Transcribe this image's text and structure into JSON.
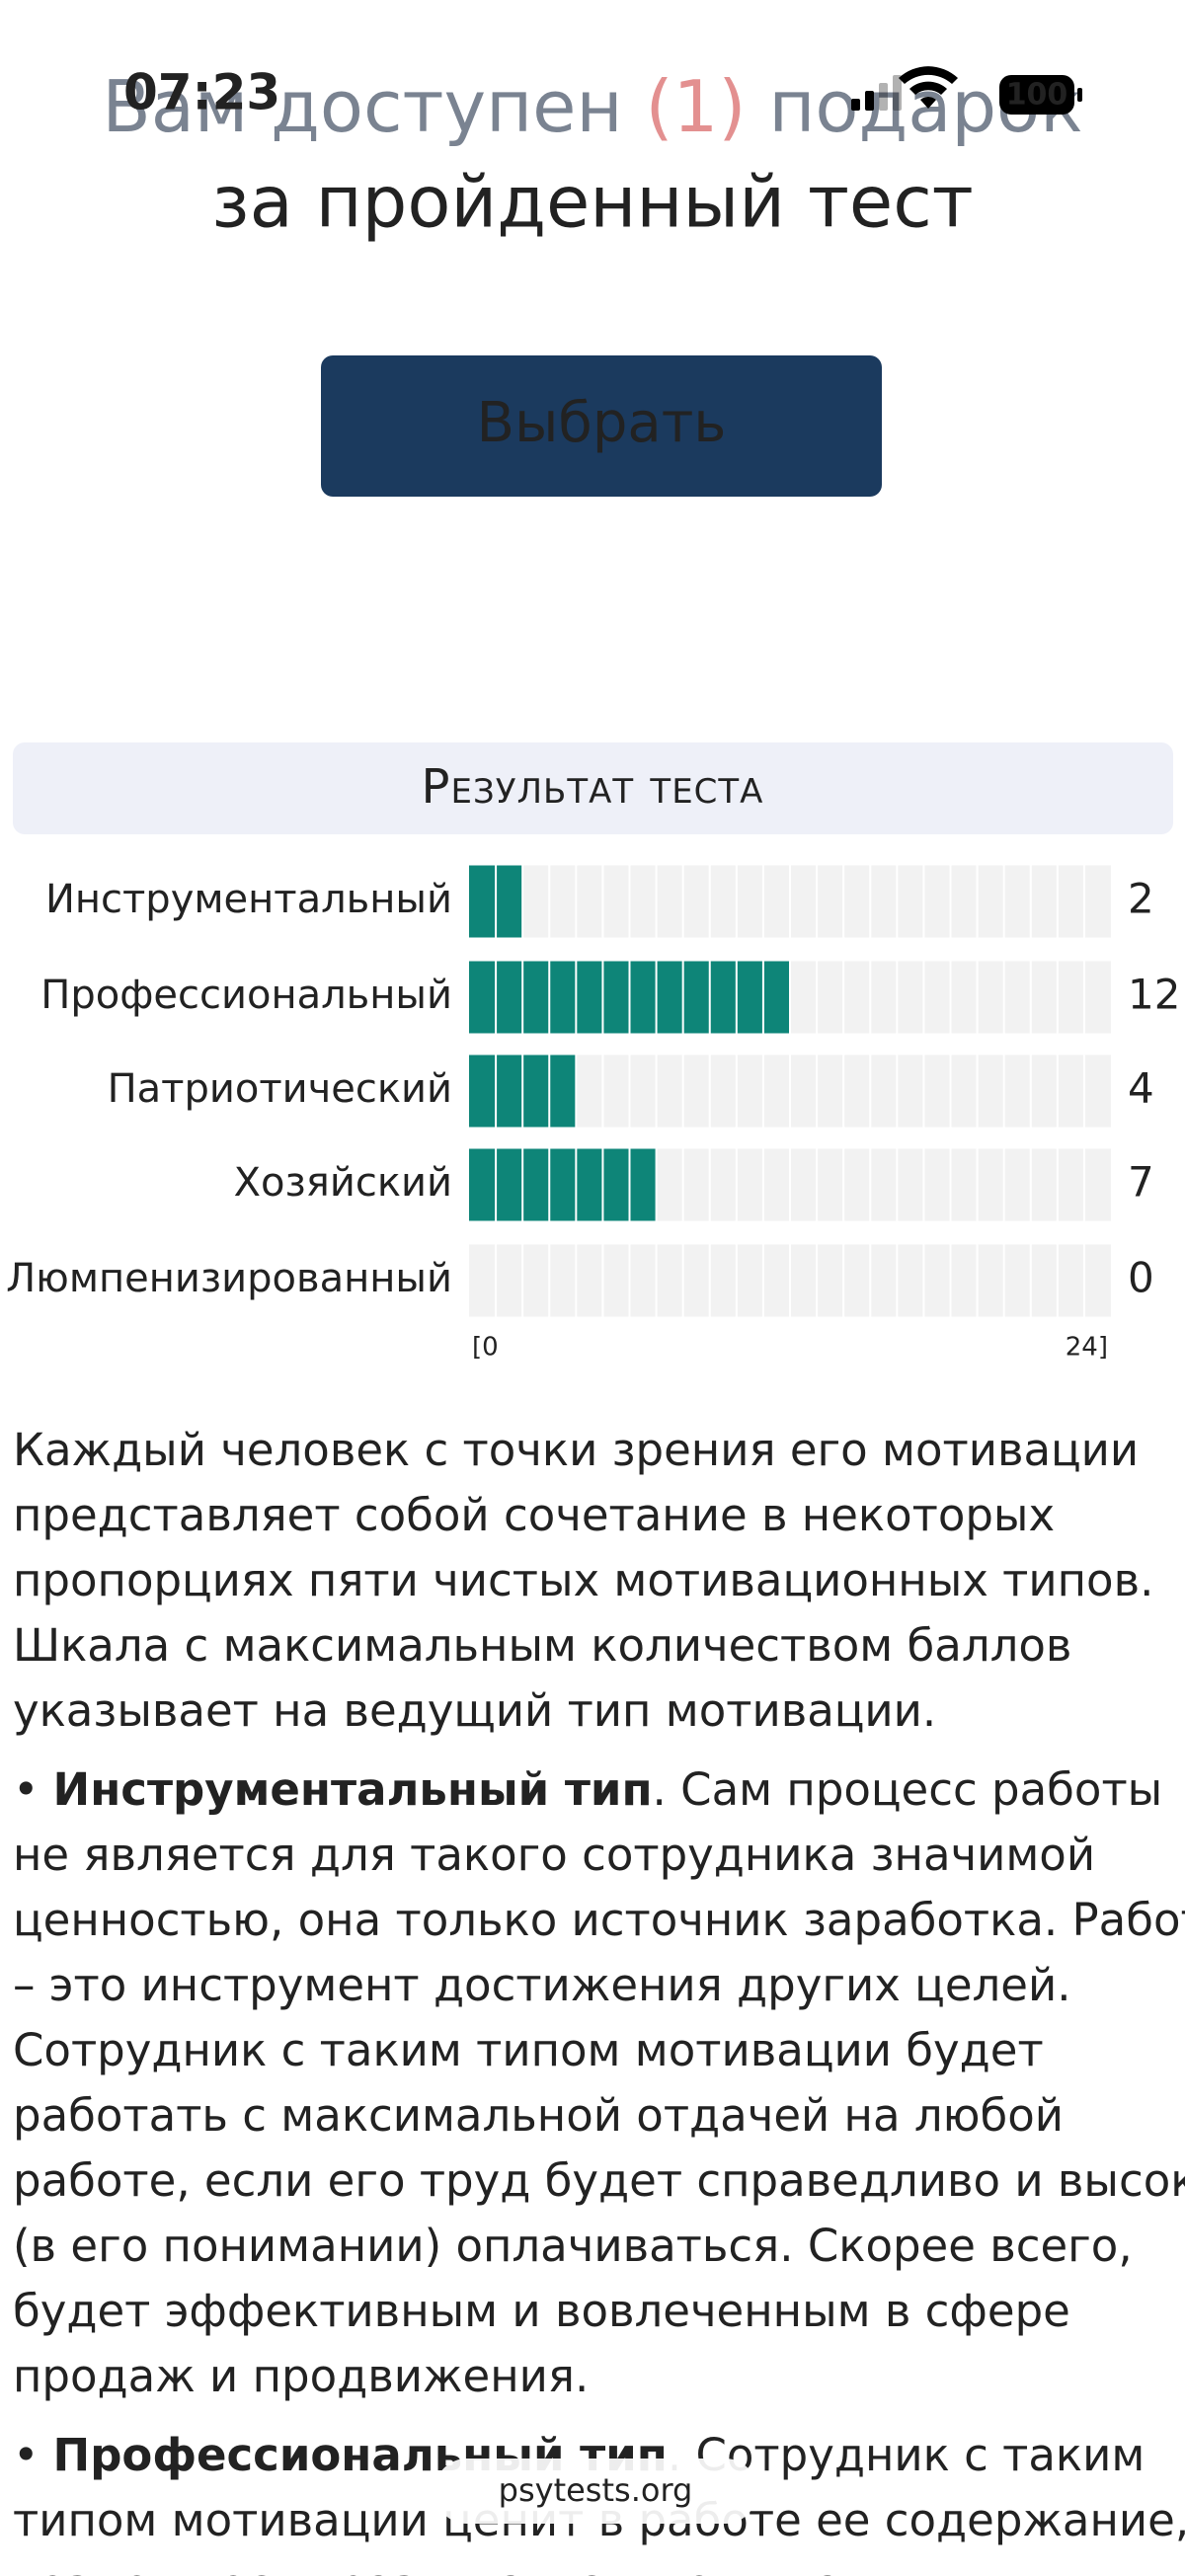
{
  "status_bar": {
    "time": "07:23",
    "battery": "100"
  },
  "header": {
    "line1": [
      "Вам доступен ",
      "(1)",
      " подарок"
    ],
    "line2": "за пройденный тест",
    "button": "Выбрать"
  },
  "chart_data": {
    "type": "bar",
    "orientation": "horizontal",
    "title": "Результат теста",
    "categories": [
      "Инструментальный",
      "Профессиональный",
      "Патриотический",
      "Хозяйский",
      "Люмпенизированный"
    ],
    "values": [
      2,
      12,
      4,
      7,
      0
    ],
    "color": "#0e8578",
    "xlim": [
      0,
      24
    ],
    "xticks": [
      {
        "value": 0,
        "label": "[0"
      },
      {
        "value": 24,
        "label": "24]"
      }
    ]
  },
  "description": {
    "intro": [
      "Каждый человек с точки зрения его мотивации",
      "представляет собой сочетание в некоторых",
      "пропорциях пяти чистых мотивационных типов.",
      "Шкала с максимальным количеством баллов",
      "указывает на ведущий тип мотивации."
    ],
    "items": [
      {
        "bullet": "•",
        "title": "Инструментальный тип",
        "lines": [
          ". Сам процесс работы",
          "не является для такого сотрудника значимой",
          "ценностью, она только источник заработка. Работа",
          "– это инструмент достижения других целей.",
          "Сотрудник с таким типом мотивации будет",
          "работать с максимальной отдачей на любой",
          "работе, если его труд будет справедливо и высоко",
          "(в его понимании) оплачиваться. Скорее всего,",
          "будет эффективным и вовлеченным в сфере",
          "продаж и продвижения."
        ]
      },
      {
        "bullet": "•",
        "title": "Профессиональный тип",
        "lines": [
          ". Сотрудник с таким",
          "типом мотивации ценит в работе ее содержание,",
          "возможность развиваться, повышать"
        ]
      }
    ]
  },
  "footer": {
    "site": "psytests.org"
  }
}
